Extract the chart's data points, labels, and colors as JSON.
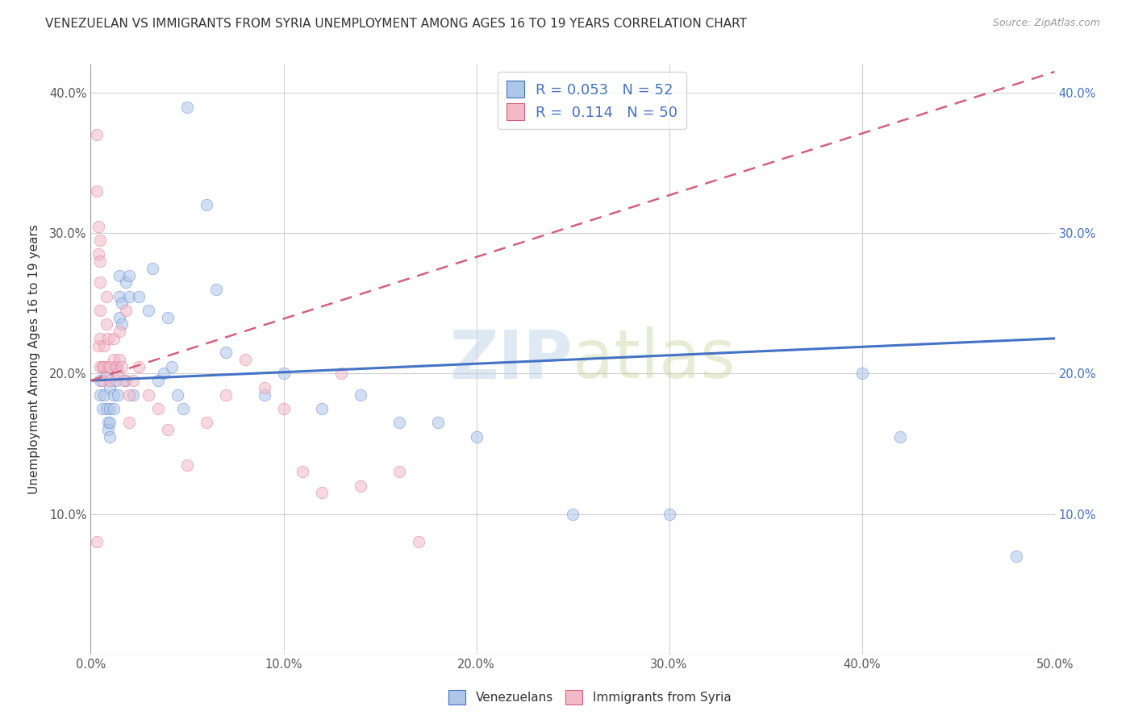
{
  "title": "VENEZUELAN VS IMMIGRANTS FROM SYRIA UNEMPLOYMENT AMONG AGES 16 TO 19 YEARS CORRELATION CHART",
  "source": "Source: ZipAtlas.com",
  "ylabel": "Unemployment Among Ages 16 to 19 years",
  "watermark": "ZIPatlas",
  "xlim": [
    0.0,
    0.5
  ],
  "ylim": [
    0.0,
    0.42
  ],
  "xticks": [
    0.0,
    0.1,
    0.2,
    0.3,
    0.4,
    0.5
  ],
  "yticks": [
    0.0,
    0.1,
    0.2,
    0.3,
    0.4
  ],
  "xtick_labels": [
    "0.0%",
    "10.0%",
    "20.0%",
    "30.0%",
    "40.0%",
    "50.0%"
  ],
  "ytick_labels": [
    "",
    "10.0%",
    "20.0%",
    "30.0%",
    "40.0%"
  ],
  "venezuelan_x": [
    0.005,
    0.005,
    0.006,
    0.007,
    0.008,
    0.008,
    0.009,
    0.009,
    0.01,
    0.01,
    0.01,
    0.01,
    0.012,
    0.012,
    0.013,
    0.013,
    0.014,
    0.015,
    0.015,
    0.015,
    0.016,
    0.016,
    0.018,
    0.018,
    0.02,
    0.02,
    0.022,
    0.025,
    0.03,
    0.032,
    0.035,
    0.038,
    0.04,
    0.042,
    0.045,
    0.048,
    0.05,
    0.06,
    0.065,
    0.07,
    0.09,
    0.1,
    0.12,
    0.14,
    0.16,
    0.18,
    0.2,
    0.25,
    0.3,
    0.4,
    0.42,
    0.48
  ],
  "venezuelan_y": [
    0.195,
    0.185,
    0.175,
    0.185,
    0.2,
    0.175,
    0.165,
    0.16,
    0.19,
    0.175,
    0.165,
    0.155,
    0.185,
    0.175,
    0.205,
    0.195,
    0.185,
    0.27,
    0.255,
    0.24,
    0.25,
    0.235,
    0.265,
    0.195,
    0.27,
    0.255,
    0.185,
    0.255,
    0.245,
    0.275,
    0.195,
    0.2,
    0.24,
    0.205,
    0.185,
    0.175,
    0.39,
    0.32,
    0.26,
    0.215,
    0.185,
    0.2,
    0.175,
    0.185,
    0.165,
    0.165,
    0.155,
    0.1,
    0.1,
    0.2,
    0.155,
    0.07
  ],
  "syria_x": [
    0.003,
    0.003,
    0.003,
    0.004,
    0.004,
    0.004,
    0.005,
    0.005,
    0.005,
    0.005,
    0.005,
    0.005,
    0.006,
    0.006,
    0.007,
    0.007,
    0.008,
    0.008,
    0.009,
    0.009,
    0.01,
    0.01,
    0.012,
    0.012,
    0.013,
    0.014,
    0.015,
    0.015,
    0.016,
    0.017,
    0.018,
    0.02,
    0.022,
    0.025,
    0.03,
    0.035,
    0.04,
    0.05,
    0.06,
    0.07,
    0.08,
    0.09,
    0.1,
    0.11,
    0.12,
    0.13,
    0.14,
    0.16,
    0.17,
    0.02
  ],
  "syria_y": [
    0.37,
    0.33,
    0.08,
    0.305,
    0.285,
    0.22,
    0.295,
    0.28,
    0.265,
    0.245,
    0.225,
    0.205,
    0.205,
    0.195,
    0.22,
    0.205,
    0.255,
    0.235,
    0.225,
    0.205,
    0.205,
    0.195,
    0.225,
    0.21,
    0.205,
    0.2,
    0.23,
    0.21,
    0.205,
    0.195,
    0.245,
    0.185,
    0.195,
    0.205,
    0.185,
    0.175,
    0.16,
    0.135,
    0.165,
    0.185,
    0.21,
    0.19,
    0.175,
    0.13,
    0.115,
    0.2,
    0.12,
    0.13,
    0.08,
    0.165
  ],
  "venezuelan_color": "#aec6e8",
  "venezuela_line_color": "#4472c4",
  "syria_color": "#f4b8c8",
  "syria_line_color": "#d4607a",
  "legend_r_venezuela": "R = 0.053",
  "legend_n_venezuela": "N = 52",
  "legend_r_syria": "R =  0.114",
  "legend_n_syria": "N = 50",
  "grid_color": "#d0d0d0",
  "background_color": "#ffffff",
  "title_fontsize": 11,
  "axis_fontsize": 11,
  "tick_fontsize": 10.5,
  "marker_size": 110,
  "marker_alpha": 0.55,
  "ven_line_x": [
    0.0,
    0.5
  ],
  "ven_line_y": [
    0.195,
    0.225
  ],
  "syr_line_x": [
    0.0,
    0.5
  ],
  "syr_line_y": [
    0.195,
    0.415
  ]
}
